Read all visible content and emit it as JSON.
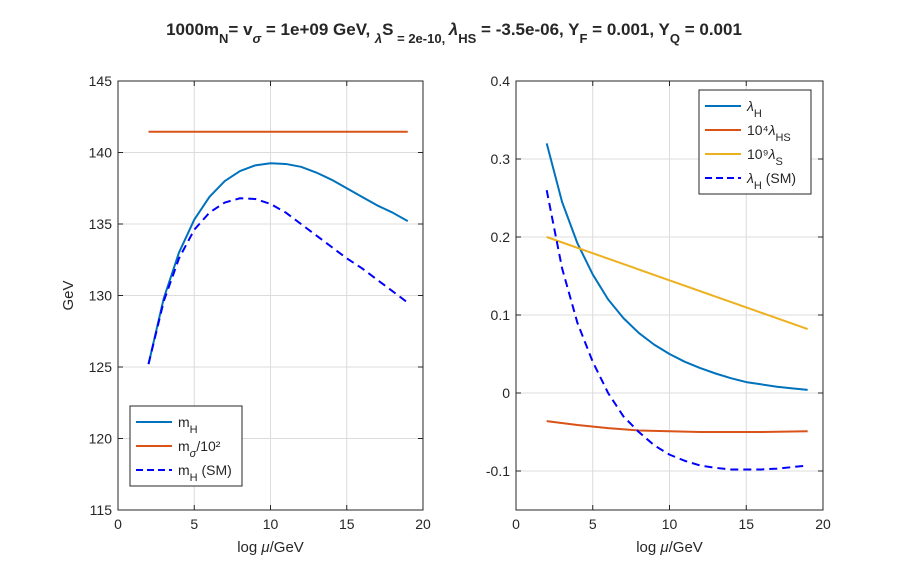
{
  "title": {
    "parts": [
      "1000m",
      "N",
      "= v",
      "σ",
      " = 1e+09 GeV, ",
      "λ",
      "S",
      " = 2e-10, ",
      "λ",
      "HS",
      " = -3.5e-06, Y",
      "F",
      " = 0.001, Y",
      "Q",
      " = 0.001"
    ]
  },
  "colors": {
    "blue": "#0072bd",
    "orange": "#d95319",
    "yellow": "#edb120",
    "dashed": "#0000ff",
    "grid": "#dcdcdc",
    "axis": "#262626"
  },
  "chart_data": [
    {
      "type": "line",
      "xlabel": "log μ/GeV",
      "ylabel": "GeV",
      "xlim": [
        0,
        20
      ],
      "ylim": [
        115,
        145
      ],
      "xticks": [
        "0",
        "5",
        "10",
        "15",
        "20"
      ],
      "yticks": [
        "115",
        "120",
        "125",
        "130",
        "135",
        "140",
        "145"
      ],
      "xtick_values": [
        0,
        5,
        10,
        15,
        20
      ],
      "ytick_values": [
        115,
        120,
        125,
        130,
        135,
        140,
        145
      ],
      "grid": true,
      "legend_position": "bottom-left",
      "legend": [
        {
          "main": "m",
          "sub": "H",
          "tail": ""
        },
        {
          "main": "m",
          "sub": "σ",
          "tail": "/10²"
        },
        {
          "main": "m",
          "sub": "H",
          "tail": " (SM)"
        }
      ],
      "series": [
        {
          "name": "m_H",
          "color": "blue",
          "dash": false,
          "x": [
            2,
            3,
            4,
            5,
            6,
            7,
            8,
            9,
            10,
            11,
            12,
            13,
            14,
            15,
            16,
            17,
            18,
            19
          ],
          "y": [
            125.2,
            129.8,
            133.0,
            135.3,
            136.9,
            138.0,
            138.7,
            139.1,
            139.25,
            139.2,
            139.0,
            138.6,
            138.1,
            137.5,
            136.9,
            136.3,
            135.8,
            135.2
          ]
        },
        {
          "name": "m_sigma/10^2",
          "color": "orange",
          "dash": false,
          "x": [
            2,
            19
          ],
          "y": [
            141.45,
            141.45
          ]
        },
        {
          "name": "m_H (SM)",
          "color": "dashed",
          "dash": true,
          "x": [
            2,
            3,
            4,
            5,
            6,
            7,
            8,
            9,
            10,
            11,
            12,
            13,
            14,
            15,
            16,
            17,
            18,
            19
          ],
          "y": [
            125.2,
            129.6,
            132.6,
            134.6,
            135.8,
            136.5,
            136.8,
            136.75,
            136.4,
            135.8,
            135.0,
            134.2,
            133.4,
            132.6,
            131.9,
            131.1,
            130.3,
            129.5
          ]
        }
      ]
    },
    {
      "type": "line",
      "xlabel": "log μ/GeV",
      "ylabel": "",
      "xlim": [
        0,
        20
      ],
      "ylim": [
        -0.15,
        0.4
      ],
      "xticks": [
        "0",
        "5",
        "10",
        "15",
        "20"
      ],
      "yticks": [
        "-0.1",
        "0",
        "0.1",
        "0.2",
        "0.3",
        "0.4"
      ],
      "xtick_values": [
        0,
        5,
        10,
        15,
        20
      ],
      "ytick_values": [
        -0.1,
        0,
        0.1,
        0.2,
        0.3,
        0.4
      ],
      "grid": true,
      "legend_position": "top-right",
      "legend": [
        {
          "main": "λ",
          "sub": "H",
          "tail": "",
          "pre": ""
        },
        {
          "main": "λ",
          "sub": "HS",
          "tail": "",
          "pre": "10⁴"
        },
        {
          "main": "λ",
          "sub": "S",
          "tail": "",
          "pre": "10⁹"
        },
        {
          "main": "λ",
          "sub": "H",
          "tail": " (SM)",
          "pre": ""
        }
      ],
      "series": [
        {
          "name": "lambda_H",
          "color": "blue",
          "dash": false,
          "x": [
            2,
            3,
            4,
            5,
            6,
            7,
            8,
            9,
            10,
            11,
            12,
            13,
            14,
            15,
            16,
            17,
            18,
            19
          ],
          "y": [
            0.32,
            0.245,
            0.192,
            0.152,
            0.12,
            0.096,
            0.077,
            0.062,
            0.05,
            0.04,
            0.032,
            0.025,
            0.019,
            0.014,
            0.011,
            0.008,
            0.006,
            0.004
          ]
        },
        {
          "name": "10^4 lambda_HS",
          "color": "orange",
          "dash": false,
          "x": [
            2,
            4,
            6,
            8,
            10,
            12,
            14,
            16,
            19
          ],
          "y": [
            -0.036,
            -0.041,
            -0.045,
            -0.048,
            -0.049,
            -0.05,
            -0.05,
            -0.05,
            -0.049
          ]
        },
        {
          "name": "10^9 lambda_S",
          "color": "yellow",
          "dash": false,
          "x": [
            2,
            19
          ],
          "y": [
            0.2,
            0.082
          ]
        },
        {
          "name": "lambda_H (SM)",
          "color": "dashed",
          "dash": true,
          "x": [
            2,
            3,
            4,
            5,
            6,
            7,
            8,
            9,
            10,
            11,
            12,
            13,
            14,
            15,
            16,
            17,
            18,
            19
          ],
          "y": [
            0.26,
            0.16,
            0.09,
            0.04,
            0.0,
            -0.03,
            -0.05,
            -0.067,
            -0.079,
            -0.087,
            -0.093,
            -0.096,
            -0.098,
            -0.098,
            -0.098,
            -0.097,
            -0.095,
            -0.093
          ]
        }
      ]
    }
  ]
}
